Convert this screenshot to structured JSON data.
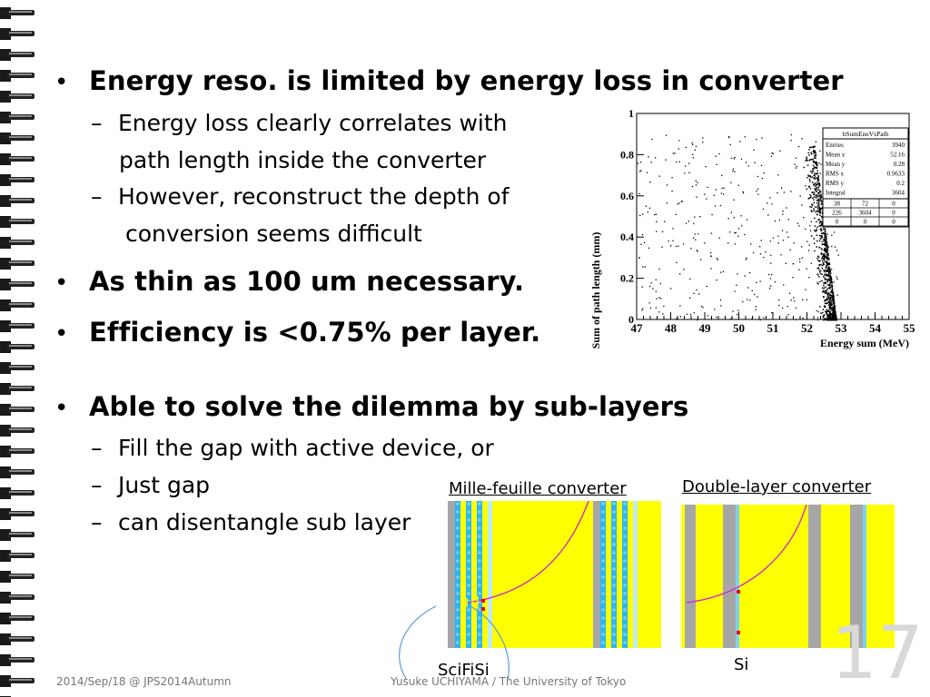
{
  "bullets": [
    {
      "text": "Energy reso. is limited by energy loss in converter"
    },
    {
      "text": "As thin as 100 um necessary."
    },
    {
      "text": "Efficiency is <0.75% per layer."
    },
    {
      "text": "Able to solve the dilemma by sub-layers"
    }
  ],
  "subitems_1": [
    {
      "line1": "Energy loss clearly correlates with",
      "line2": "path length inside the converter"
    },
    {
      "line1": "However, reconstruct the depth of",
      "line2": "conversion seems difficult"
    }
  ],
  "subitems_2": [
    {
      "text": "Fill the gap with active device, or"
    },
    {
      "text": "Just gap"
    },
    {
      "text": "can disentangle sub layer"
    }
  ],
  "bullet_symbol": "•",
  "dash_symbol": "–",
  "chart_data": {
    "type": "scatter",
    "title": "",
    "xlabel": "Energy sum (MeV)",
    "ylabel": "Sum of path length (mm)",
    "xlim": [
      47,
      55
    ],
    "ylim": [
      0,
      1
    ],
    "xticks": [
      "47",
      "48",
      "49",
      "50",
      "51",
      "52",
      "53",
      "54",
      "55"
    ],
    "yticks": [
      "0",
      "0.2",
      "0.4",
      "0.6",
      "0.8",
      "1"
    ],
    "stats_box": {
      "name": "hSumEneVsPath",
      "rows": [
        [
          "Entries",
          "3940"
        ],
        [
          "Mean x",
          "52.16"
        ],
        [
          "Mean y",
          "0.28"
        ],
        [
          "RMS x",
          "0.9633"
        ],
        [
          "RMS y",
          "0.2"
        ],
        [
          "Integral",
          "3604"
        ]
      ],
      "grid": [
        [
          "38",
          "72",
          "0"
        ],
        [
          "226",
          "3604",
          "0"
        ],
        [
          "0",
          "0",
          "0"
        ]
      ]
    },
    "distribution": {
      "band_slope_mev_per_mm": -0.75,
      "band_intercept_mev": 52.85,
      "background_x_range": [
        47,
        53
      ],
      "background_y_range": [
        0,
        0.9
      ]
    }
  },
  "diagram_left": {
    "title": "Mille-feuille converter",
    "label": "SciFiSi"
  },
  "diagram_right": {
    "title": "Double-layer converter",
    "label": "Si"
  },
  "footer": {
    "date": "2014/Sep/18 @ JPS2014Autumn",
    "author": "Yusuke UCHIYAMA / The University of Tokyo"
  },
  "page_number": "17",
  "colors": {
    "converter": "#ffff00",
    "scifi": "#29b6f6",
    "gap": "#a6a6a6",
    "track": "#d01fd0",
    "hit": "#e60000"
  }
}
